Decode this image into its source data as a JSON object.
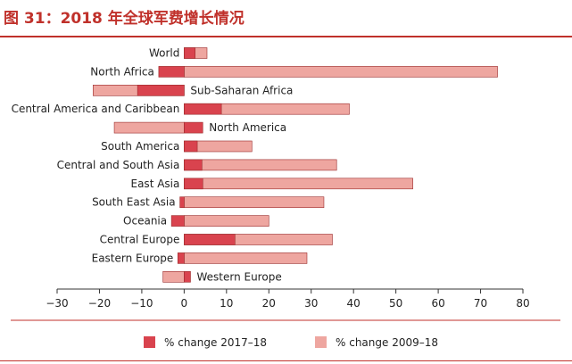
{
  "title": "图 31：2018 年全球军费增长情况",
  "colors": {
    "accent": "#c0312b",
    "series1": "#d9434e",
    "series2": "#eea6a0",
    "stroke": "#9a2a2a"
  },
  "chart_data": {
    "type": "bar",
    "orientation": "horizontal",
    "categories": [
      "World",
      "North Africa",
      "Sub-Saharan Africa",
      "Central America and Caribbean",
      "North America",
      "South America",
      "Central and South Asia",
      "East Asia",
      "South East Asia",
      "Oceania",
      "Central Europe",
      "Eastern Europe",
      "Western Europe"
    ],
    "label_side": [
      "left",
      "left",
      "right",
      "left",
      "right",
      "left",
      "left",
      "left",
      "left",
      "left",
      "left",
      "left",
      "right"
    ],
    "series": [
      {
        "name": "% change 2017–18",
        "values": [
          2.6,
          -6,
          -11,
          8.8,
          4.4,
          3.1,
          4.2,
          4.4,
          -1,
          -3,
          12,
          -1.5,
          1.5
        ]
      },
      {
        "name": "% change 2009–18",
        "values": [
          5.4,
          74,
          -21.5,
          39,
          -16.5,
          16,
          36,
          54,
          33,
          20,
          35,
          29,
          -5
        ]
      }
    ],
    "xlim": [
      -30,
      80
    ],
    "xticks": [
      -30,
      -20,
      -10,
      0,
      10,
      20,
      30,
      40,
      50,
      60,
      70,
      80
    ],
    "grid": false,
    "legend_position": "bottom"
  }
}
